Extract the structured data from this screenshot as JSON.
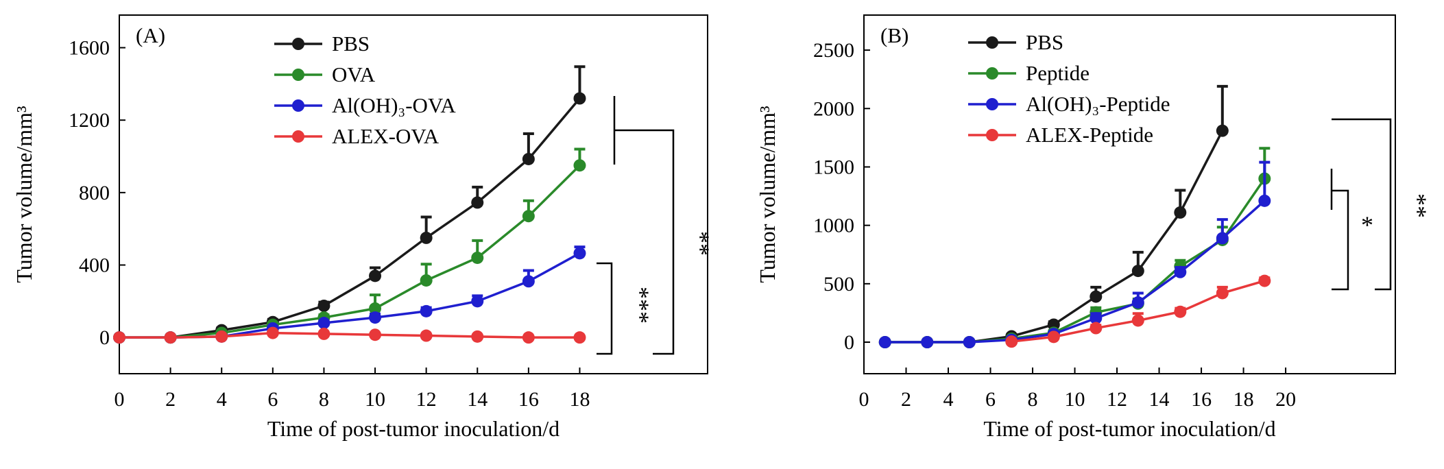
{
  "chart_data": [
    {
      "type": "line",
      "panel_label": "(A)",
      "xlabel": "Time of post-tumor inoculation/d",
      "ylabel": "Tumor volume/mm³",
      "xlim": [
        0,
        23
      ],
      "ylim": [
        -200,
        1780
      ],
      "x_ticks": [
        0,
        2,
        4,
        6,
        8,
        10,
        12,
        14,
        16,
        18
      ],
      "y_ticks": [
        0,
        400,
        800,
        1200,
        1600
      ],
      "legend": "top-left",
      "grid": false,
      "series": [
        {
          "name": "PBS",
          "color": "#1a1a1a",
          "x": [
            0,
            2,
            4,
            6,
            8,
            10,
            12,
            14,
            16,
            18
          ],
          "y": [
            0,
            0,
            40,
            85,
            175,
            340,
            550,
            745,
            985,
            1320
          ],
          "err": [
            0,
            0,
            12,
            15,
            20,
            45,
            115,
            85,
            140,
            175
          ]
        },
        {
          "name": "OVA",
          "color": "#2a8a2a",
          "x": [
            0,
            2,
            4,
            6,
            8,
            10,
            12,
            14,
            16,
            18
          ],
          "y": [
            0,
            0,
            25,
            70,
            110,
            160,
            315,
            440,
            670,
            950
          ],
          "err": [
            0,
            0,
            8,
            12,
            15,
            75,
            90,
            95,
            85,
            90
          ]
        },
        {
          "name": "Al(OH)₃-OVA",
          "color": "#1f1fcf",
          "x": [
            0,
            2,
            4,
            6,
            8,
            10,
            12,
            14,
            16,
            18
          ],
          "y": [
            0,
            0,
            5,
            50,
            80,
            110,
            145,
            200,
            310,
            465
          ],
          "err": [
            0,
            0,
            5,
            10,
            10,
            20,
            20,
            30,
            60,
            35
          ]
        },
        {
          "name": "ALEX-OVA",
          "color": "#e8383a",
          "x": [
            0,
            2,
            4,
            6,
            8,
            10,
            12,
            14,
            16,
            18
          ],
          "y": [
            0,
            0,
            5,
            25,
            20,
            15,
            10,
            5,
            0,
            0
          ],
          "err": [
            0,
            0,
            0,
            0,
            0,
            0,
            0,
            0,
            0,
            0
          ]
        }
      ],
      "significance": [
        {
          "label": "**"
        },
        {
          "label": "***"
        }
      ]
    },
    {
      "type": "line",
      "panel_label": "(B)",
      "xlabel": "Time of post-tumor inoculation/d",
      "ylabel": "Tumor volume/mm³",
      "xlim": [
        0,
        25.2
      ],
      "ylim": [
        -270,
        2800
      ],
      "x_ticks": [
        0,
        2,
        4,
        6,
        8,
        10,
        12,
        14,
        16,
        18,
        20
      ],
      "y_ticks": [
        0,
        500,
        1000,
        1500,
        2000,
        2500
      ],
      "legend": "top-left",
      "grid": false,
      "series": [
        {
          "name": "PBS",
          "color": "#1a1a1a",
          "x": [
            1,
            3,
            5,
            7,
            9,
            11,
            13,
            15,
            17
          ],
          "y": [
            0,
            0,
            0,
            50,
            150,
            390,
            610,
            1110,
            1810
          ],
          "err": [
            0,
            0,
            0,
            15,
            25,
            80,
            160,
            190,
            380
          ]
        },
        {
          "name": "Peptide",
          "color": "#2a8a2a",
          "x": [
            1,
            3,
            5,
            7,
            9,
            11,
            13,
            15,
            17,
            19
          ],
          "y": [
            0,
            0,
            0,
            30,
            80,
            255,
            330,
            650,
            875,
            1400
          ],
          "err": [
            0,
            0,
            0,
            10,
            20,
            40,
            40,
            50,
            110,
            260
          ]
        },
        {
          "name": "Al(OH)₃-Peptide",
          "color": "#1f1fcf",
          "x": [
            1,
            3,
            5,
            7,
            9,
            11,
            13,
            15,
            17,
            19
          ],
          "y": [
            0,
            0,
            0,
            20,
            70,
            205,
            340,
            600,
            890,
            1210
          ],
          "err": [
            0,
            0,
            0,
            5,
            15,
            40,
            80,
            40,
            160,
            330
          ]
        },
        {
          "name": "ALEX-Peptide",
          "color": "#e8383a",
          "x": [
            7,
            9,
            11,
            13,
            15,
            17,
            19
          ],
          "y": [
            5,
            45,
            120,
            185,
            260,
            420,
            525
          ],
          "err": [
            0,
            15,
            25,
            60,
            30,
            50,
            25
          ]
        }
      ],
      "significance": [
        {
          "label": "*"
        },
        {
          "label": "**"
        }
      ]
    }
  ]
}
